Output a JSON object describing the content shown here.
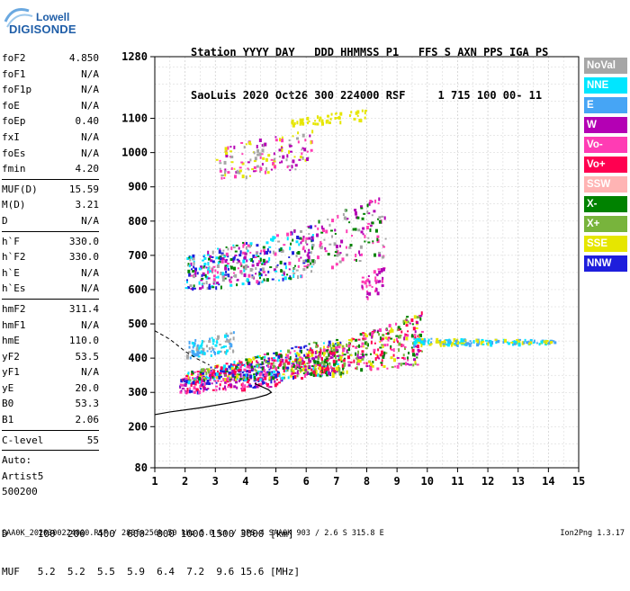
{
  "logo": {
    "top": "Lowell",
    "bottom": "DIGISONDE"
  },
  "header": {
    "line1": "Station YYYY DAY   DDD HHMMSS P1   FFS S AXN PPS IGA PS",
    "line2": "SaoLuis 2020 Oct26 300 224000 RSF     1 715 100 00- 11"
  },
  "params": [
    {
      "k": "foF2",
      "v": "4.850"
    },
    {
      "k": "foF1",
      "v": "N/A"
    },
    {
      "k": "foF1p",
      "v": "N/A"
    },
    {
      "k": "foE",
      "v": "N/A"
    },
    {
      "k": "foEp",
      "v": "0.40"
    },
    {
      "k": "fxI",
      "v": "N/A"
    },
    {
      "k": "foEs",
      "v": "N/A"
    },
    {
      "k": "fmin",
      "v": "4.20"
    },
    {
      "sep": true
    },
    {
      "k": "MUF(D)",
      "v": "15.59"
    },
    {
      "k": "M(D)",
      "v": "3.21"
    },
    {
      "k": "D",
      "v": "N/A"
    },
    {
      "sep": true
    },
    {
      "k": "h`F",
      "v": "330.0"
    },
    {
      "k": "h`F2",
      "v": "330.0"
    },
    {
      "k": "h`E",
      "v": "N/A"
    },
    {
      "k": "h`Es",
      "v": "N/A"
    },
    {
      "sep": true
    },
    {
      "k": "hmF2",
      "v": "311.4"
    },
    {
      "k": "hmF1",
      "v": "N/A"
    },
    {
      "k": "hmE",
      "v": "110.0"
    },
    {
      "k": "yF2",
      "v": "53.5"
    },
    {
      "k": "yF1",
      "v": "N/A"
    },
    {
      "k": "yE",
      "v": "20.0"
    },
    {
      "k": "B0",
      "v": "53.3"
    },
    {
      "k": "B1",
      "v": "2.06"
    },
    {
      "sep": true
    },
    {
      "k": "C-level",
      "v": "55"
    },
    {
      "sep": true
    },
    {
      "k": "Auto:",
      "v": ""
    },
    {
      "k": "Artist5",
      "v": ""
    },
    {
      "k": "500200",
      "v": ""
    }
  ],
  "legend": [
    {
      "label": "NoVal",
      "color": "#a6a6a6"
    },
    {
      "label": "NNE",
      "color": "#00e6ff"
    },
    {
      "label": "E",
      "color": "#46a5f5"
    },
    {
      "label": "W",
      "color": "#b400b4"
    },
    {
      "label": "Vo-",
      "color": "#ff3cb4"
    },
    {
      "label": "Vo+",
      "color": "#ff0050"
    },
    {
      "label": "SSW",
      "color": "#ffb4b4"
    },
    {
      "label": "X-",
      "color": "#008200"
    },
    {
      "label": "X+",
      "color": "#78b43c"
    },
    {
      "label": "SSE",
      "color": "#e6e600"
    },
    {
      "label": "NNW",
      "color": "#1e1edc"
    }
  ],
  "bottom": {
    "d_line": "D     100  200  400  600  800 1000 1500 3000 [km]",
    "muf_line": "MUF   5.2  5.2  5.5  5.9  6.4  7.2  9.6 15.6 [MHz]"
  },
  "footer": "SAA0K_2020300224000.RSF / 280fx256h 50 kHz 5.0 km / DPS-4 SAA0K 903 / 2.6 S 315.8 E",
  "version": "Ion2Png 1.3.17",
  "chart_data": {
    "type": "scatter",
    "xlim": [
      1,
      15
    ],
    "ylim": [
      80,
      1280
    ],
    "x_ticks": [
      1,
      2,
      3,
      4,
      5,
      6,
      7,
      8,
      9,
      10,
      11,
      12,
      13,
      14,
      15
    ],
    "y_ticks": [
      80,
      200,
      300,
      400,
      500,
      600,
      700,
      800,
      900,
      1000,
      1100,
      1280
    ],
    "xlabel": "",
    "ylabel": "",
    "grid": true,
    "profile": {
      "solid": [
        [
          1.0,
          235
        ],
        [
          1.5,
          243
        ],
        [
          2.5,
          255
        ],
        [
          3.5,
          270
        ],
        [
          4.3,
          283
        ],
        [
          4.7,
          293
        ],
        [
          4.85,
          300
        ],
        [
          4.75,
          308
        ],
        [
          4.5,
          318
        ],
        [
          4.3,
          326
        ]
      ],
      "dashed": [
        [
          1.0,
          480
        ],
        [
          1.5,
          455
        ],
        [
          2.0,
          420
        ],
        [
          2.4,
          398
        ],
        [
          2.8,
          380
        ]
      ]
    },
    "clusters": [
      {
        "name": "F2 trace O",
        "x": [
          1.8,
          5.2
        ],
        "y0": [
          300,
          320
        ],
        "y1": [
          340,
          420
        ],
        "colors": [
          "#1e1edc",
          "#b400b4",
          "#ff0050",
          "#ff3cb4"
        ],
        "n": 260
      },
      {
        "name": "F2 band",
        "x": [
          2.0,
          7.2
        ],
        "y0": [
          330,
          350
        ],
        "y1": [
          360,
          470
        ],
        "colors": [
          "#008200",
          "#78b43c",
          "#ff3cb4",
          "#1e1edc",
          "#ff0050",
          "#e6e600",
          "#00e6ff"
        ],
        "n": 420
      },
      {
        "name": "F2 upper",
        "x": [
          5.5,
          9.8
        ],
        "y0": [
          350,
          380
        ],
        "y1": [
          400,
          540
        ],
        "colors": [
          "#ff0050",
          "#ff3cb4",
          "#e6e600",
          "#78b43c",
          "#b400b4",
          "#008200"
        ],
        "n": 420
      },
      {
        "name": "Spread east",
        "x": [
          9.5,
          14.2
        ],
        "y0": [
          440,
          445
        ],
        "y1": [
          460,
          455
        ],
        "colors": [
          "#00e6ff",
          "#46a5f5",
          "#e6e600"
        ],
        "n": 180
      },
      {
        "name": "F2 cyan west",
        "x": [
          2.0,
          3.6
        ],
        "y0": [
          400,
          420
        ],
        "y1": [
          450,
          480
        ],
        "colors": [
          "#00e6ff",
          "#46a5f5",
          "#a6a6a6"
        ],
        "n": 100
      },
      {
        "name": "Second hop",
        "x": [
          2.0,
          6.2
        ],
        "y0": [
          600,
          640
        ],
        "y1": [
          700,
          790
        ],
        "colors": [
          "#b400b4",
          "#ff3cb4",
          "#1e1edc",
          "#008200",
          "#00e6ff",
          "#a6a6a6"
        ],
        "n": 380
      },
      {
        "name": "Second hop upper",
        "x": [
          6.0,
          8.6
        ],
        "y0": [
          650,
          700
        ],
        "y1": [
          800,
          880
        ],
        "colors": [
          "#b400b4",
          "#ff3cb4",
          "#008200",
          "#a6a6a6"
        ],
        "n": 140
      },
      {
        "name": "Third hop",
        "x": [
          3.0,
          6.2
        ],
        "y0": [
          920,
          960
        ],
        "y1": [
          1010,
          1090
        ],
        "colors": [
          "#e6e600",
          "#b400b4",
          "#a6a6a6",
          "#ff3cb4"
        ],
        "n": 140
      },
      {
        "name": "Third hop line",
        "x": [
          5.5,
          8.0
        ],
        "y0": [
          1080,
          1100
        ],
        "y1": [
          1100,
          1130
        ],
        "colors": [
          "#e6e600"
        ],
        "n": 50
      },
      {
        "name": "Es trace",
        "x": [
          7.8,
          8.6
        ],
        "y0": [
          570,
          600
        ],
        "y1": [
          640,
          680
        ],
        "colors": [
          "#ff3cb4",
          "#b400b4"
        ],
        "n": 40
      }
    ]
  }
}
